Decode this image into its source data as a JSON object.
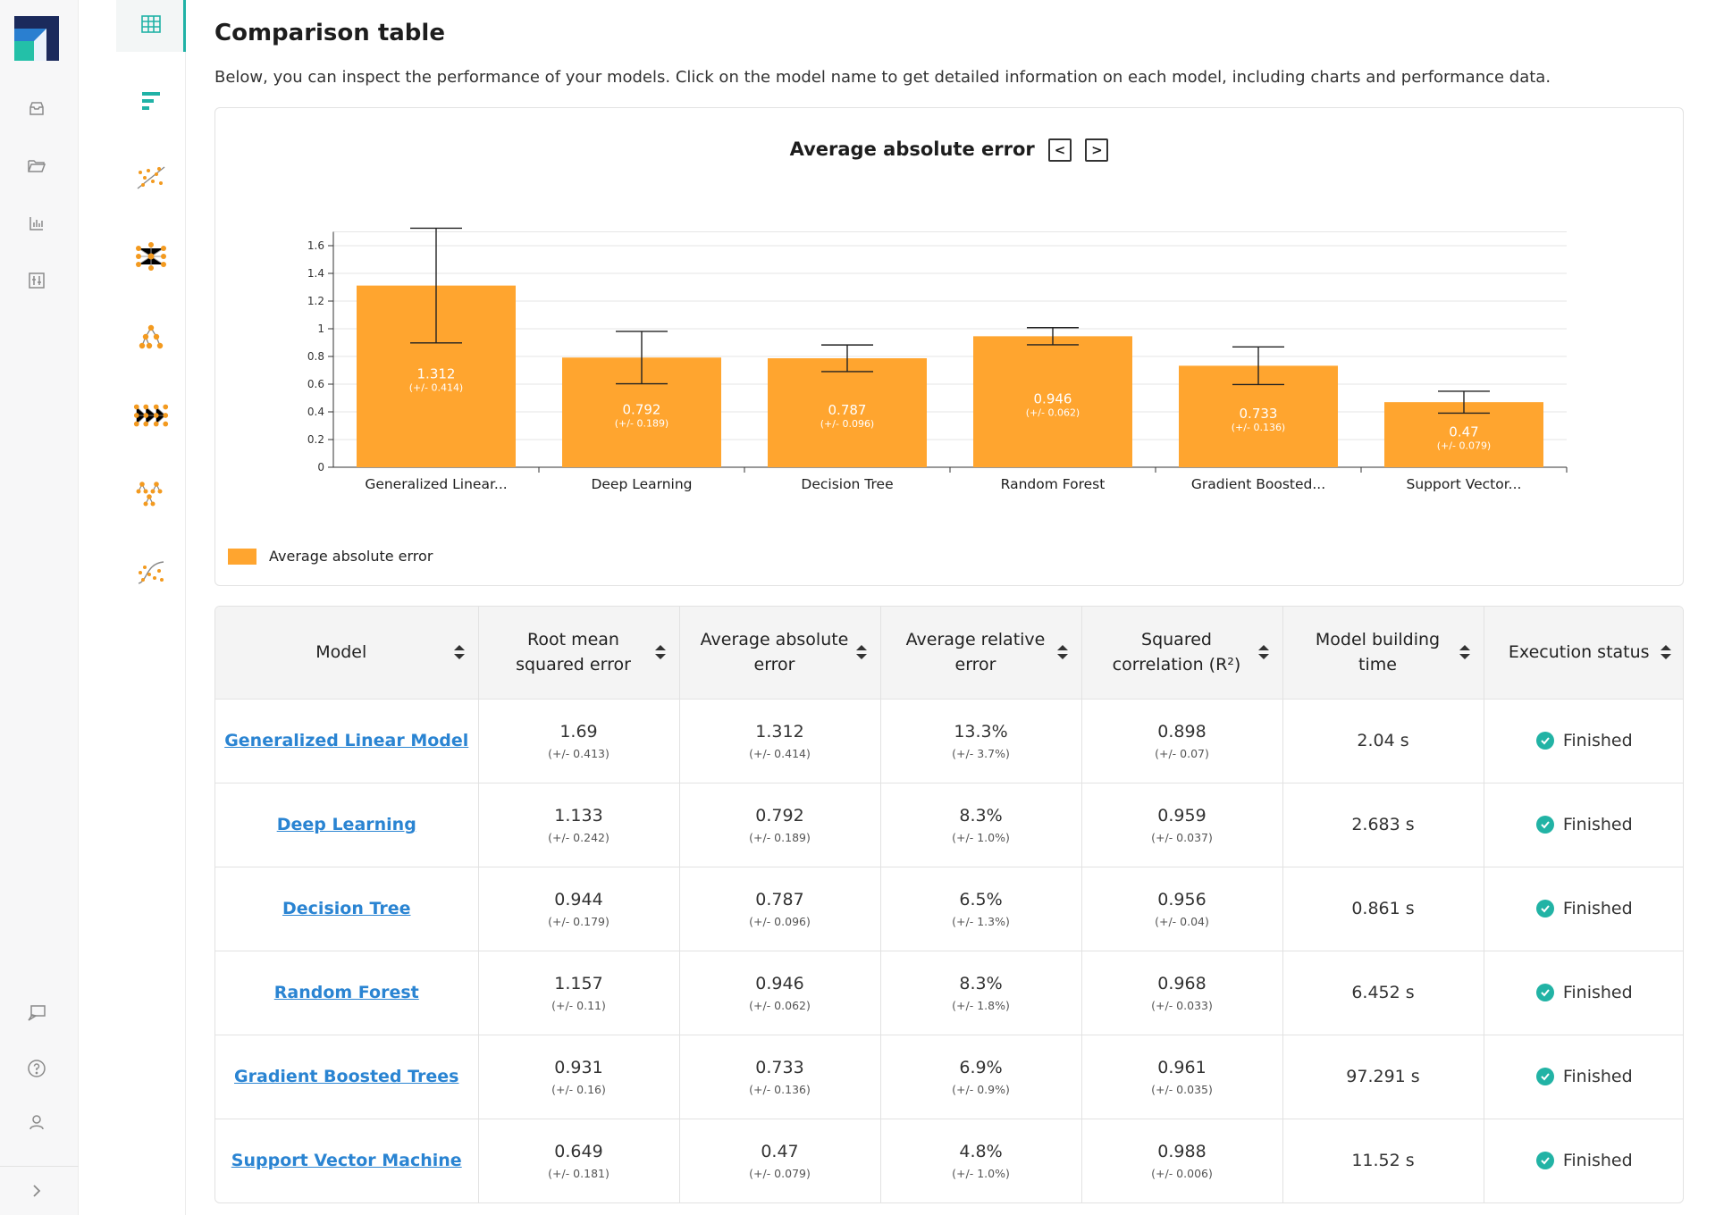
{
  "page": {
    "title": "Comparison table",
    "subtitle": "Below, you can inspect the performance of your models. Click on the model name to get detailed information on each model, including charts and performance data."
  },
  "colors": {
    "bar": "#ffa52f",
    "accent": "#20b2a6",
    "link": "#2a84d2",
    "success": "#22b3a5"
  },
  "rail": {
    "icons": [
      "app-logo",
      "inbox-icon",
      "folder-icon",
      "bar-chart-icon",
      "sliders-icon"
    ],
    "bottom_icons": [
      "feedback-icon",
      "help-icon",
      "user-icon",
      "expand-icon"
    ]
  },
  "views": {
    "icons": [
      "table-icon",
      "horizontal-bars-icon",
      "scatter-icon",
      "network-icon",
      "tree-icon",
      "neural-net-icon",
      "boosted-trees-icon",
      "svm-curve-icon"
    ],
    "active_index": 0
  },
  "chart_data": {
    "type": "bar",
    "title": "Average absolute error",
    "categories": [
      "Generalized Linear...",
      "Deep Learning",
      "Decision Tree",
      "Random Forest",
      "Gradient Boosted...",
      "Support Vector..."
    ],
    "series": [
      {
        "name": "Average absolute error",
        "values": [
          1.312,
          0.792,
          0.787,
          0.946,
          0.733,
          0.47
        ],
        "errors": [
          0.414,
          0.189,
          0.096,
          0.062,
          0.136,
          0.079
        ],
        "error_labels": [
          "(+/- 0.414)",
          "(+/- 0.189)",
          "(+/- 0.096)",
          "(+/- 0.062)",
          "(+/- 0.136)",
          "(+/- 0.079)"
        ]
      }
    ],
    "yticks": [
      "0",
      "0.2",
      "0.4",
      "0.6",
      "0.8",
      "1",
      "1.2",
      "1.4",
      "1.6"
    ],
    "ylim": [
      0,
      1.6
    ],
    "grid": true,
    "legend": "bottom-left",
    "prev_label": "<",
    "next_label": ">"
  },
  "table": {
    "columns": [
      "Model",
      "Root mean squared error",
      "Average absolute error",
      "Average relative error",
      "Squared correlation (R²)",
      "Model building time",
      "Execution status"
    ],
    "rows": [
      {
        "model": "Generalized Linear Model",
        "rmse": "1.69",
        "rmse_err": "(+/- 0.413)",
        "aae": "1.312",
        "aae_err": "(+/- 0.414)",
        "are": "13.3%",
        "are_err": "(+/- 3.7%)",
        "r2": "0.898",
        "r2_err": "(+/- 0.07)",
        "time": "2.04 s",
        "status": "Finished"
      },
      {
        "model": "Deep Learning",
        "rmse": "1.133",
        "rmse_err": "(+/- 0.242)",
        "aae": "0.792",
        "aae_err": "(+/- 0.189)",
        "are": "8.3%",
        "are_err": "(+/- 1.0%)",
        "r2": "0.959",
        "r2_err": "(+/- 0.037)",
        "time": "2.683 s",
        "status": "Finished"
      },
      {
        "model": "Decision Tree",
        "rmse": "0.944",
        "rmse_err": "(+/- 0.179)",
        "aae": "0.787",
        "aae_err": "(+/- 0.096)",
        "are": "6.5%",
        "are_err": "(+/- 1.3%)",
        "r2": "0.956",
        "r2_err": "(+/- 0.04)",
        "time": "0.861 s",
        "status": "Finished"
      },
      {
        "model": "Random Forest",
        "rmse": "1.157",
        "rmse_err": "(+/- 0.11)",
        "aae": "0.946",
        "aae_err": "(+/- 0.062)",
        "are": "8.3%",
        "are_err": "(+/- 1.8%)",
        "r2": "0.968",
        "r2_err": "(+/- 0.033)",
        "time": "6.452 s",
        "status": "Finished"
      },
      {
        "model": "Gradient Boosted Trees",
        "rmse": "0.931",
        "rmse_err": "(+/- 0.16)",
        "aae": "0.733",
        "aae_err": "(+/- 0.136)",
        "are": "6.9%",
        "are_err": "(+/- 0.9%)",
        "r2": "0.961",
        "r2_err": "(+/- 0.035)",
        "time": "97.291 s",
        "status": "Finished"
      },
      {
        "model": "Support Vector Machine",
        "rmse": "0.649",
        "rmse_err": "(+/- 0.181)",
        "aae": "0.47",
        "aae_err": "(+/- 0.079)",
        "are": "4.8%",
        "are_err": "(+/- 1.0%)",
        "r2": "0.988",
        "r2_err": "(+/- 0.006)",
        "time": "11.52 s",
        "status": "Finished"
      }
    ]
  }
}
